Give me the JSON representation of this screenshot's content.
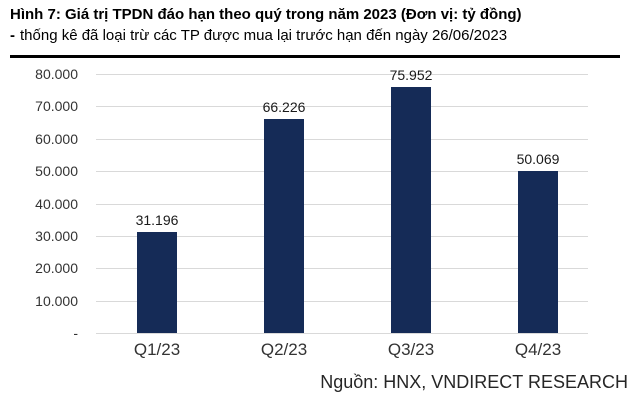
{
  "chart_data": {
    "type": "bar",
    "title": "Hình 7: Giá trị TPDN đáo hạn theo quý trong năm 2023 (Đơn vị: tỷ đồng)",
    "subtitle_dash": "-",
    "subtitle": "thống kê đã loại trừ các TP được mua lại trước hạn đến ngày 26/06/2023",
    "source": "Nguồn: HNX, VNDIRECT RESEARCH",
    "categories": [
      "Q1/23",
      "Q2/23",
      "Q3/23",
      "Q4/23"
    ],
    "values": [
      31196,
      66226,
      75952,
      50069
    ],
    "value_labels": [
      "31.196",
      "66.226",
      "75.952",
      "50.069"
    ],
    "ylim": [
      0,
      80000
    ],
    "yticks": [
      {
        "value": 0,
        "label": "-"
      },
      {
        "value": 10000,
        "label": "10.000"
      },
      {
        "value": 20000,
        "label": "20.000"
      },
      {
        "value": 30000,
        "label": "30.000"
      },
      {
        "value": 40000,
        "label": "40.000"
      },
      {
        "value": 50000,
        "label": "50.000"
      },
      {
        "value": 60000,
        "label": "60.000"
      },
      {
        "value": 70000,
        "label": "70.000"
      },
      {
        "value": 80000,
        "label": "80.000"
      }
    ],
    "grid": true,
    "legend": "none",
    "colors": {
      "bar": "#152b57",
      "gridline": "#d9d9d9",
      "rule": "#000000",
      "title_text": "#000000",
      "axis_text": "#333333",
      "background": "#ffffff"
    }
  }
}
